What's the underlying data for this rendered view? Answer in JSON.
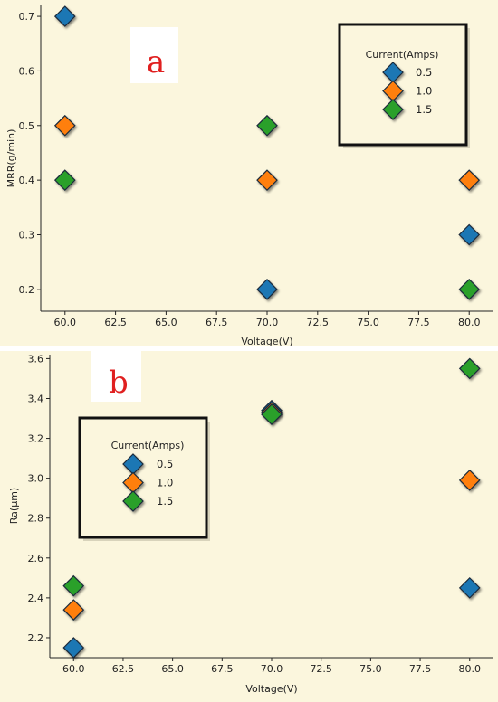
{
  "chart_data": [
    {
      "type": "scatter",
      "panel_label": "a",
      "xlabel": "Voltage(V)",
      "ylabel": "MRR(g/min)",
      "xlim": [
        58.8,
        81.2
      ],
      "ylim": [
        0.16,
        0.72
      ],
      "xticks": [
        "60.0",
        "62.5",
        "65.0",
        "67.5",
        "70.0",
        "72.5",
        "75.0",
        "77.5",
        "80.0"
      ],
      "yticks": [
        "0.2",
        "0.3",
        "0.4",
        "0.5",
        "0.6",
        "0.7"
      ],
      "legend": {
        "title": "Current(Amps)",
        "position": "top-right"
      },
      "grid": false,
      "series": [
        {
          "name": "0.5",
          "color": "#1f77b4",
          "points": [
            [
              60,
              0.7
            ],
            [
              70,
              0.2
            ],
            [
              80,
              0.3
            ]
          ]
        },
        {
          "name": "1.0",
          "color": "#ff7f0e",
          "points": [
            [
              60,
              0.5
            ],
            [
              70,
              0.4
            ],
            [
              80,
              0.4
            ]
          ]
        },
        {
          "name": "1.5",
          "color": "#2ca02c",
          "points": [
            [
              60,
              0.4
            ],
            [
              70,
              0.5
            ],
            [
              80,
              0.2
            ]
          ]
        }
      ]
    },
    {
      "type": "scatter",
      "panel_label": "b",
      "xlabel": "Voltage(V)",
      "ylabel": "Ra(μm)",
      "xlim": [
        58.8,
        81.2
      ],
      "ylim": [
        2.1,
        3.62
      ],
      "xticks": [
        "60.0",
        "62.5",
        "65.0",
        "67.5",
        "70.0",
        "72.5",
        "75.0",
        "77.5",
        "80.0"
      ],
      "yticks": [
        "2.2",
        "2.4",
        "2.6",
        "2.8",
        "3.0",
        "3.2",
        "3.4",
        "3.6"
      ],
      "legend": {
        "title": "Current(Amps)",
        "position": "center-left"
      },
      "grid": false,
      "series": [
        {
          "name": "0.5",
          "color": "#1f77b4",
          "points": [
            [
              60,
              2.15
            ],
            [
              70,
              3.34
            ],
            [
              80,
              2.45
            ]
          ]
        },
        {
          "name": "1.0",
          "color": "#ff7f0e",
          "points": [
            [
              60,
              2.34
            ],
            [
              70,
              3.33
            ],
            [
              80,
              2.99
            ]
          ]
        },
        {
          "name": "1.5",
          "color": "#2ca02c",
          "points": [
            [
              60,
              2.46
            ],
            [
              70,
              3.32
            ],
            [
              80,
              3.55
            ]
          ]
        }
      ]
    }
  ]
}
